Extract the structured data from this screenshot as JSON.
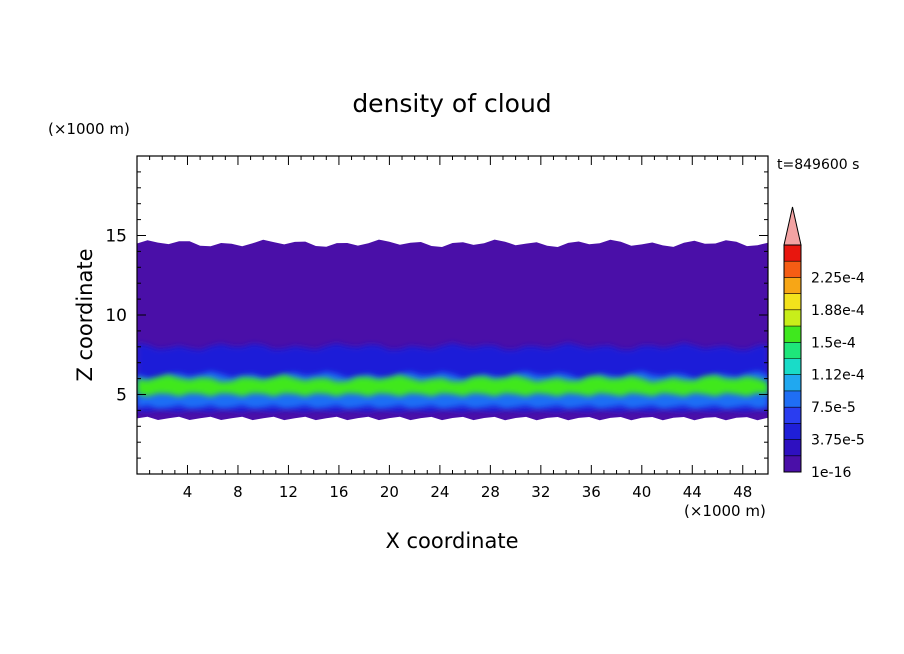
{
  "chart_data": {
    "type": "heatmap",
    "title": "density of cloud",
    "xlabel": "X coordinate",
    "ylabel": "Z coordinate",
    "x_unit": "(×1000 m)",
    "y_unit": "(×1000 m)",
    "time_label": "t=849600 s",
    "xlim": [
      0,
      50
    ],
    "ylim": [
      0,
      20
    ],
    "x_ticks": [
      4,
      8,
      12,
      16,
      20,
      24,
      28,
      32,
      36,
      40,
      44,
      48
    ],
    "x_tick_labels": [
      "4",
      "8",
      "12",
      "16",
      "20",
      "24",
      "28",
      "32",
      "36",
      "40",
      "44",
      "48"
    ],
    "y_ticks": [
      5,
      10,
      15
    ],
    "y_tick_labels": [
      "5",
      "10",
      "15"
    ],
    "colorbar": {
      "levels": [
        1e-16,
        1.875e-05,
        3.75e-05,
        5.625e-05,
        7.5e-05,
        9.375e-05,
        0.0001125,
        0.00013125,
        0.00015,
        0.00016875,
        0.0001875,
        0.00020625,
        0.000225,
        0.00024375
      ],
      "tick_labels": [
        "1e-16",
        "3.75e-5",
        "7.5e-5",
        "1.12e-4",
        "1.5e-4",
        "1.88e-4",
        "2.25e-4"
      ],
      "colors": [
        "#4a0fa8",
        "#2e10c0",
        "#1f1fd8",
        "#2a3df0",
        "#1f6ef5",
        "#20a8f0",
        "#19dcc8",
        "#1ee67a",
        "#3fe81e",
        "#c8ee1a",
        "#f3e21c",
        "#f7a616",
        "#f55d14",
        "#e8160e"
      ],
      "over_color": "#f3a3a3"
    },
    "layers": [
      {
        "z_bottom": 3.5,
        "z_top": 14.5,
        "level": 1e-16
      },
      {
        "z_bottom": 4.0,
        "z_top": 8.0,
        "level": 3.75e-05
      },
      {
        "z_bottom": 4.2,
        "z_top": 6.2,
        "level": 7.5e-05
      },
      {
        "z_bottom": 5.0,
        "z_top": 6.0,
        "level": 0.00015
      }
    ]
  }
}
